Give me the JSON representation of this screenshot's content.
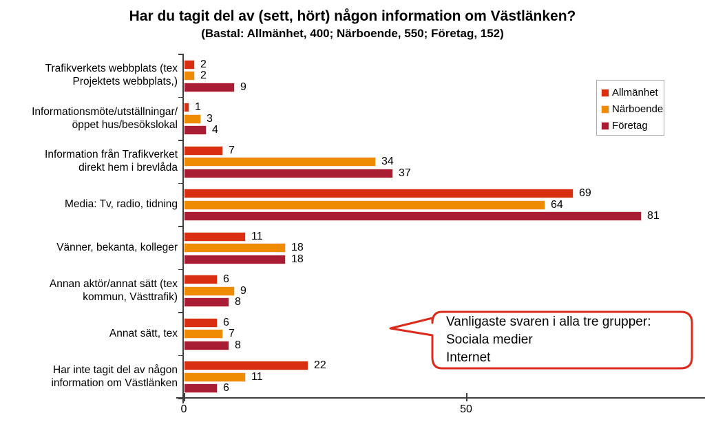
{
  "title": "Har du tagit del av (sett, hört) någon information om Västlänken?",
  "subtitle": "(Bastal: Allmänhet, 400; Närboende, 550; Företag, 152)",
  "chart_data": {
    "type": "bar",
    "orientation": "horizontal",
    "title": "Har du tagit del av (sett, hört) någon information om Västlänken?",
    "subtitle": "(Bastal: Allmänhet, 400; Närboende, 550; Företag, 152)",
    "categories": [
      "Trafikverkets webbplats (tex\nProjektets webbplats,)",
      "Informationsmöte/utställningar/\nöppet hus/besökslokal",
      "Information från Trafikverket\ndirekt hem i brevlåda",
      "Media: Tv, radio, tidning",
      "Vänner, bekanta, kolleger",
      "Annan aktör/annat sätt (tex\nkommun, Västtrafik)",
      "Annat sätt, tex",
      "Har inte tagit del av någon\ninformation om Västlänken"
    ],
    "series": [
      {
        "name": "Allmänhet",
        "color": "#D92E12",
        "values": [
          2,
          1,
          7,
          69,
          11,
          6,
          6,
          22
        ]
      },
      {
        "name": "Närboende",
        "color": "#EE8B00",
        "values": [
          2,
          3,
          34,
          64,
          18,
          9,
          7,
          11
        ]
      },
      {
        "name": "Företag",
        "color": "#A81D33",
        "values": [
          9,
          4,
          37,
          81,
          18,
          8,
          8,
          6
        ]
      }
    ],
    "xlim": [
      0,
      92
    ],
    "xticks": [
      0,
      50
    ],
    "xtick_labels": [
      "0",
      "50"
    ],
    "value_labels": true,
    "grid": false,
    "legend_position": "upper-right"
  },
  "callout": {
    "border_color": "#DC2B1C",
    "lines": [
      "Vanligaste svaren i alla tre grupper:",
      "Sociala medier",
      "Internet"
    ]
  },
  "colors": {
    "axis": "#3f3f3f",
    "legend_border": "#aaaaaa",
    "text": "#000000",
    "background": "#ffffff"
  }
}
